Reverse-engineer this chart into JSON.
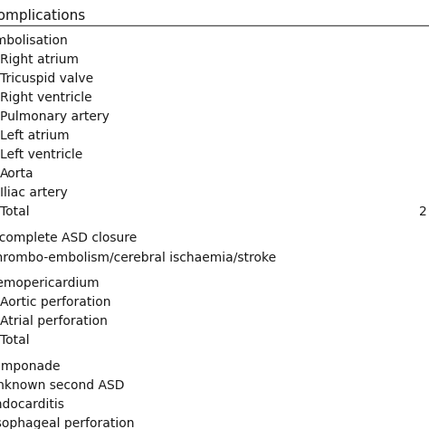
{
  "title": "Complications",
  "bg_color": "#ffffff",
  "text_color": "#1a1a1a",
  "rows": [
    {
      "text": "Embolisation",
      "indent": 0,
      "value": ""
    },
    {
      "text": "Right atrium",
      "indent": 1,
      "value": ""
    },
    {
      "text": "Tricuspid valve",
      "indent": 1,
      "value": ""
    },
    {
      "text": "Right ventricle",
      "indent": 1,
      "value": ""
    },
    {
      "text": "Pulmonary artery",
      "indent": 1,
      "value": ""
    },
    {
      "text": "Left atrium",
      "indent": 1,
      "value": ""
    },
    {
      "text": "Left ventricle",
      "indent": 1,
      "value": ""
    },
    {
      "text": "Aorta",
      "indent": 1,
      "value": ""
    },
    {
      "text": "Iliac artery",
      "indent": 1,
      "value": ""
    },
    {
      "text": "Total",
      "indent": 1,
      "value": "2"
    },
    {
      "text": "",
      "indent": 0,
      "value": ""
    },
    {
      "text": "Incomplete ASD closure",
      "indent": 0,
      "value": ""
    },
    {
      "text": "Thrombo-embolism/cerebral ischaemia/stroke",
      "indent": 0,
      "value": ""
    },
    {
      "text": "",
      "indent": 0,
      "value": ""
    },
    {
      "text": "Hemopericardium",
      "indent": 0,
      "value": ""
    },
    {
      "text": "Aortic perforation",
      "indent": 1,
      "value": ""
    },
    {
      "text": "Atrial perforation",
      "indent": 1,
      "value": ""
    },
    {
      "text": "Total",
      "indent": 1,
      "value": ""
    },
    {
      "text": "",
      "indent": 0,
      "value": ""
    },
    {
      "text": "Tamponade",
      "indent": 0,
      "value": ""
    },
    {
      "text": "Unknown second ASD",
      "indent": 0,
      "value": ""
    },
    {
      "text": "Endocarditis",
      "indent": 0,
      "value": ""
    },
    {
      "text": "Esophageal perforation",
      "indent": 0,
      "value": ""
    }
  ],
  "title_fontsize": 11,
  "row_fontsize": 10,
  "line_color": "#555555",
  "line_width": 1.0
}
